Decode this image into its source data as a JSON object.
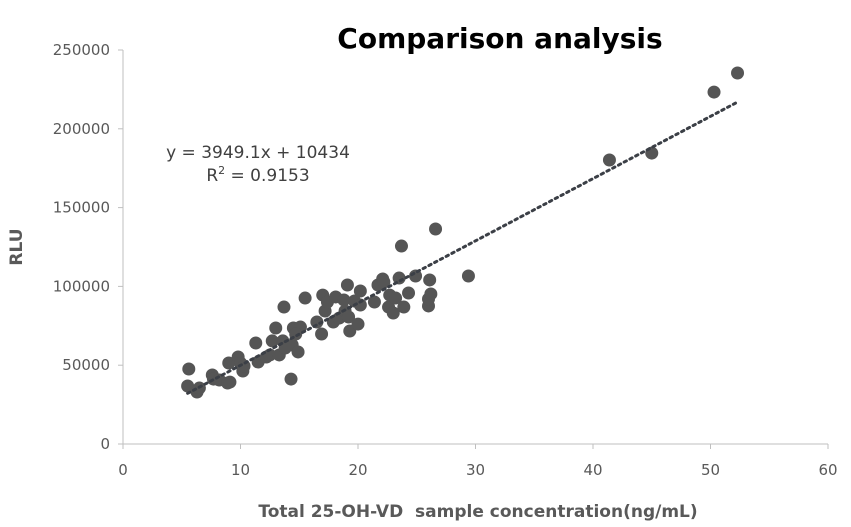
{
  "chart_data": {
    "type": "scatter",
    "title": "Comparison analysis",
    "xlabel": "Total 25-OH-VD  sample concentration(ng/mL)",
    "ylabel": "RLU",
    "xlim": [
      0,
      60
    ],
    "ylim": [
      0,
      250000
    ],
    "xticks": [
      0,
      10,
      20,
      30,
      40,
      50,
      60
    ],
    "yticks": [
      0,
      50000,
      100000,
      150000,
      200000,
      250000
    ],
    "grid": false,
    "marker_color": "#555555",
    "trendline": {
      "type": "linear",
      "slope": 3949.1,
      "intercept": 10434,
      "equation": "y = 3949.1x + 10434",
      "r2_label": "R",
      "r2_sup": "2",
      "r2_value": " = 0.9153",
      "style": "dotted",
      "color": "#3b3f46"
    },
    "points": [
      [
        5.6,
        47600
      ],
      [
        5.5,
        36800
      ],
      [
        6.3,
        33000
      ],
      [
        6.5,
        35500
      ],
      [
        7.6,
        43800
      ],
      [
        7.7,
        41200
      ],
      [
        8.2,
        40600
      ],
      [
        8.9,
        38700
      ],
      [
        9.1,
        39300
      ],
      [
        9.0,
        51400
      ],
      [
        9.8,
        55200
      ],
      [
        10.0,
        51400
      ],
      [
        10.2,
        46300
      ],
      [
        10.3,
        49500
      ],
      [
        11.3,
        64100
      ],
      [
        11.5,
        52000
      ],
      [
        12.2,
        55200
      ],
      [
        12.5,
        56500
      ],
      [
        12.7,
        65400
      ],
      [
        13.0,
        73600
      ],
      [
        13.3,
        56500
      ],
      [
        13.6,
        65400
      ],
      [
        13.8,
        60900
      ],
      [
        13.7,
        86900
      ],
      [
        14.3,
        41200
      ],
      [
        14.5,
        73600
      ],
      [
        14.4,
        62800
      ],
      [
        14.9,
        58400
      ],
      [
        15.1,
        74200
      ],
      [
        15.5,
        92600
      ],
      [
        14.7,
        69800
      ],
      [
        16.5,
        77400
      ],
      [
        16.9,
        69800
      ],
      [
        17.0,
        94500
      ],
      [
        17.2,
        84400
      ],
      [
        17.4,
        90100
      ],
      [
        17.9,
        77400
      ],
      [
        18.1,
        93300
      ],
      [
        18.4,
        79900
      ],
      [
        18.8,
        91400
      ],
      [
        18.9,
        84400
      ],
      [
        19.1,
        100900
      ],
      [
        19.2,
        80600
      ],
      [
        19.3,
        71700
      ],
      [
        19.7,
        90700
      ],
      [
        20.0,
        76100
      ],
      [
        20.2,
        97100
      ],
      [
        20.2,
        88200
      ],
      [
        21.4,
        90100
      ],
      [
        21.7,
        100900
      ],
      [
        22.1,
        104700
      ],
      [
        22.2,
        102800
      ],
      [
        22.6,
        86900
      ],
      [
        22.7,
        94500
      ],
      [
        23.0,
        83100
      ],
      [
        23.2,
        92600
      ],
      [
        23.5,
        105300
      ],
      [
        23.7,
        125600
      ],
      [
        23.9,
        86900
      ],
      [
        24.3,
        95800
      ],
      [
        24.9,
        106600
      ],
      [
        26.0,
        87600
      ],
      [
        26.0,
        92000
      ],
      [
        26.1,
        104100
      ],
      [
        26.2,
        95200
      ],
      [
        26.6,
        136400
      ],
      [
        29.4,
        106600
      ],
      [
        41.4,
        180200
      ],
      [
        45.0,
        184600
      ],
      [
        50.3,
        223300
      ],
      [
        52.3,
        235400
      ]
    ]
  }
}
